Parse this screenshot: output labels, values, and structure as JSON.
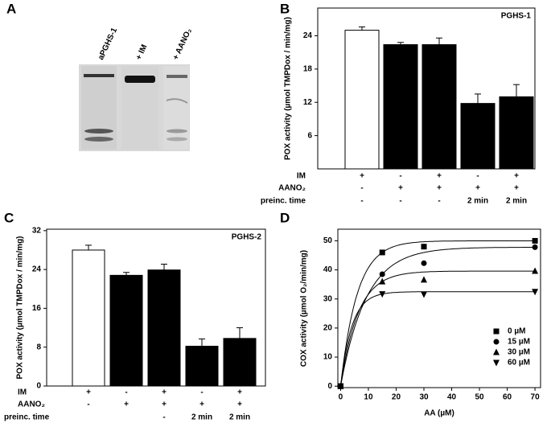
{
  "gel": {
    "panel_label": "A",
    "lanes": [
      "aPGHS-1",
      "+ IM",
      "+ AANO₂"
    ]
  },
  "chart_data": [
    {
      "type": "bar",
      "panel_label": "B",
      "title": "PGHS-1",
      "ylabel": "POX activity (µmol TMPDox / min/mg)",
      "values": [
        25.0,
        22.4,
        22.4,
        11.8,
        13.0
      ],
      "errors": [
        0.6,
        0.4,
        1.2,
        1.7,
        2.2
      ],
      "colors": [
        "#ffffff",
        "#000000",
        "#000000",
        "#000000",
        "#000000"
      ],
      "ylim": [
        0,
        29
      ],
      "yticks": [
        6,
        12,
        18,
        24
      ],
      "conditions": [
        {
          "name": "IM",
          "values": [
            "+",
            "-",
            "+",
            "-",
            "+"
          ]
        },
        {
          "name": "AANO₂",
          "values": [
            "-",
            "+",
            "+",
            "+",
            "+"
          ]
        },
        {
          "name": "preinc. time",
          "values": [
            "-",
            "-",
            "-",
            "2 min",
            "2 min"
          ]
        }
      ]
    },
    {
      "type": "bar",
      "panel_label": "C",
      "title": "PGHS-2",
      "ylabel": "POX activity (µmol TMPDox / min/mg)",
      "values": [
        28.0,
        22.8,
        23.9,
        8.2,
        9.8
      ],
      "errors": [
        1.0,
        0.6,
        1.2,
        1.5,
        2.2
      ],
      "colors": [
        "#ffffff",
        "#000000",
        "#000000",
        "#000000",
        "#000000"
      ],
      "ylim": [
        0,
        32.3
      ],
      "yticks": [
        0,
        8,
        16,
        24,
        32
      ],
      "conditions": [
        {
          "name": "IM",
          "values": [
            "+",
            "-",
            "+",
            "-",
            "+"
          ]
        },
        {
          "name": "AANO₂",
          "values": [
            "-",
            "+",
            "+",
            "+",
            "+"
          ]
        },
        {
          "name": "preinc. time",
          "values": [
            null,
            null,
            "-",
            "2 min",
            "2 min"
          ]
        }
      ]
    },
    {
      "type": "scatter",
      "panel_label": "D",
      "xlabel": "AA (µM)",
      "ylabel": "COX activity (µmol O₂/min/mg)",
      "x": [
        0,
        15,
        30,
        70
      ],
      "xlim": [
        -1,
        72
      ],
      "ylim": [
        -0.5,
        54
      ],
      "xticks": [
        0,
        10,
        20,
        30,
        40,
        50,
        60,
        70
      ],
      "yticks": [
        0,
        10,
        20,
        30,
        40,
        50
      ],
      "legend": "lower right",
      "series": [
        {
          "name": "0 µM",
          "marker": "square",
          "color": "#000000",
          "values": [
            0,
            46,
            48,
            50
          ]
        },
        {
          "name": "15 µM",
          "marker": "circle",
          "color": "#000000",
          "values": [
            0,
            38.5,
            42.3,
            47.8
          ]
        },
        {
          "name": "30 µM",
          "marker": "triangle-up",
          "color": "#000000",
          "values": [
            0,
            36,
            36.6,
            39.6
          ]
        },
        {
          "name": "60 µM",
          "marker": "triangle-down",
          "color": "#000000",
          "values": [
            0,
            31.7,
            31.6,
            32.5
          ]
        }
      ]
    }
  ]
}
